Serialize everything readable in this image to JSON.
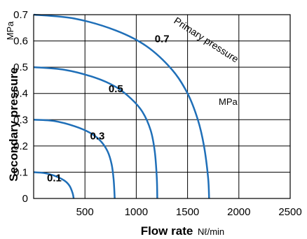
{
  "chart_data": {
    "type": "line",
    "xlabel": "Flow rate",
    "xunit": "Nℓ/min",
    "ylabel": "Secondary pressure",
    "yunit": "MPa",
    "xlim": [
      0,
      2500
    ],
    "ylim": [
      0,
      0.7
    ],
    "xticks": [
      "",
      "500",
      "1000",
      "1500",
      "2000",
      "2500"
    ],
    "yticks": [
      "0",
      "0.1",
      "0.2",
      "0.3",
      "0.4",
      "0.5",
      "0.6",
      "0.7"
    ],
    "grid": true,
    "line_color": "#1f6fb8",
    "curves_label": "Primary pressure",
    "curves_label_unit": "MPa",
    "series": [
      {
        "name": "0.1",
        "x": [
          0,
          100,
          200,
          300,
          350,
          380,
          390
        ],
        "y": [
          0.1,
          0.097,
          0.087,
          0.068,
          0.048,
          0.02,
          0
        ]
      },
      {
        "name": "0.3",
        "x": [
          0,
          200,
          400,
          550,
          650,
          720,
          760,
          780,
          790
        ],
        "y": [
          0.3,
          0.295,
          0.275,
          0.25,
          0.22,
          0.18,
          0.13,
          0.07,
          0
        ]
      },
      {
        "name": "0.5",
        "x": [
          0,
          300,
          600,
          800,
          950,
          1060,
          1140,
          1180,
          1200,
          1205
        ],
        "y": [
          0.5,
          0.49,
          0.46,
          0.425,
          0.38,
          0.33,
          0.26,
          0.18,
          0.08,
          0
        ]
      },
      {
        "name": "0.7",
        "x": [
          0,
          400,
          800,
          1100,
          1350,
          1500,
          1600,
          1660,
          1700,
          1710
        ],
        "y": [
          0.7,
          0.685,
          0.64,
          0.58,
          0.49,
          0.4,
          0.3,
          0.2,
          0.08,
          0
        ]
      }
    ]
  }
}
